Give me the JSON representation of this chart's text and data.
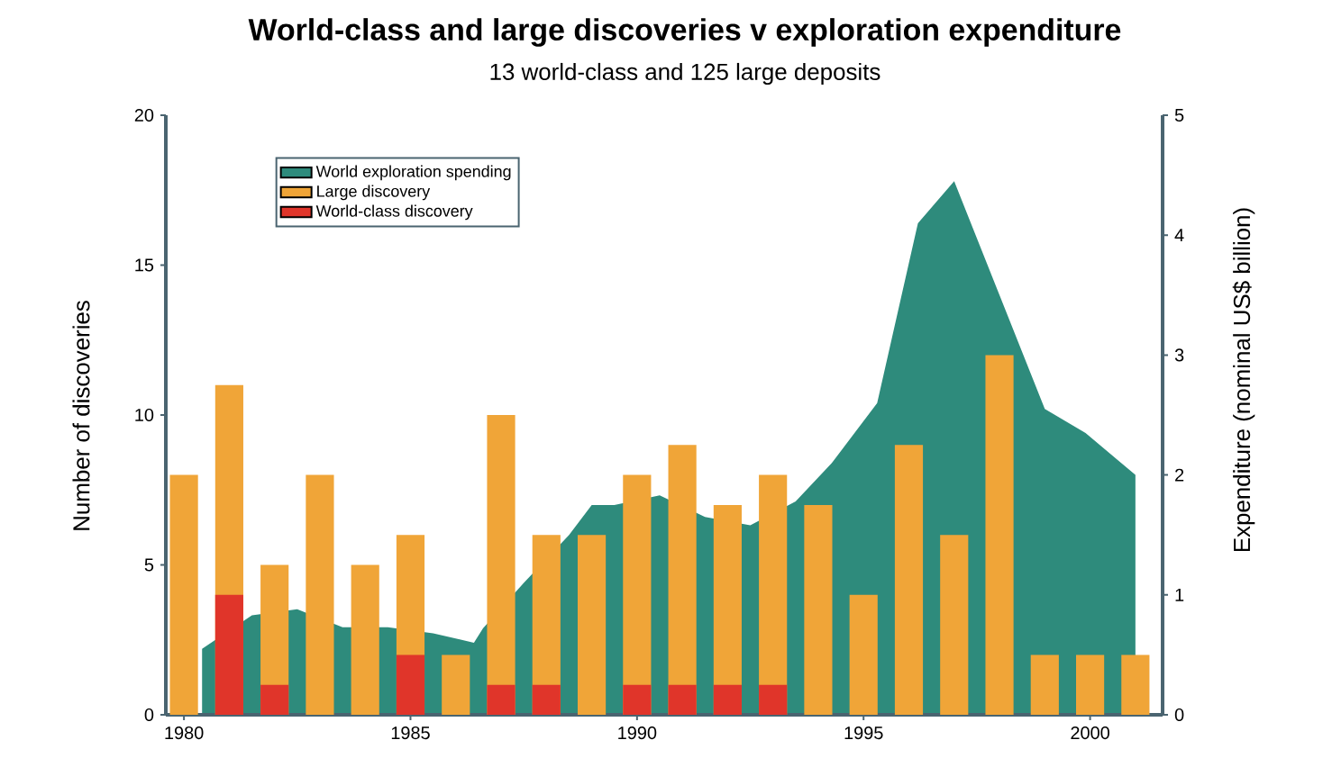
{
  "chart_data": {
    "type": "bar",
    "title": "World-class and large discoveries v exploration expenditure",
    "subtitle": "13 world-class and 125 large deposits",
    "ylabel": "Number of discoveries",
    "y2label": "Expenditure (nominal US$ billion)",
    "x": [
      1980,
      1981,
      1982,
      1983,
      1984,
      1985,
      1986,
      1987,
      1988,
      1989,
      1990,
      1991,
      1992,
      1993,
      1994,
      1995,
      1996,
      1997,
      1998,
      1999,
      2000,
      2001
    ],
    "series": [
      {
        "name": "World exploration spending",
        "type": "area",
        "axis": "y2",
        "color": "#2e8b7c",
        "x": [
          1980.4,
          1981.5,
          1982.5,
          1983.5,
          1984.5,
          1985.5,
          1986.4,
          1986.6,
          1987.5,
          1988.5,
          1989,
          1989.5,
          1990.5,
          1991.5,
          1992.5,
          1993.5,
          1994.3,
          1995.3,
          1996.2,
          1997,
          1998,
          1999,
          1999.9,
          2001
        ],
        "values": [
          0.55,
          0.83,
          0.88,
          0.73,
          0.73,
          0.68,
          0.6,
          0.72,
          1.1,
          1.5,
          1.75,
          1.75,
          1.83,
          1.65,
          1.58,
          1.78,
          2.1,
          2.6,
          4.1,
          4.45,
          3.5,
          2.55,
          2.35,
          2.0
        ]
      },
      {
        "name": "Large discovery",
        "color": "#f0a538",
        "values": [
          8,
          11,
          5,
          8,
          5,
          6,
          2,
          10,
          6,
          6,
          8,
          9,
          7,
          8,
          7,
          4,
          9,
          6,
          12,
          2,
          2,
          2
        ]
      },
      {
        "name": "World-class discovery",
        "color": "#e0352a",
        "values": [
          null,
          4,
          1,
          null,
          null,
          2,
          null,
          1,
          1,
          null,
          1,
          1,
          1,
          1,
          null,
          null,
          null,
          null,
          null,
          null,
          null,
          null
        ]
      }
    ],
    "xlim": [
      1979.6,
      2001.6
    ],
    "xticks": [
      1980,
      1985,
      1990,
      1995,
      2000
    ],
    "ylim": [
      0,
      20
    ],
    "yticks": [
      0,
      5,
      10,
      15,
      20
    ],
    "y2lim": [
      0,
      5
    ],
    "y2ticks": [
      0,
      1,
      2,
      3,
      4,
      5
    ],
    "legend": "top left",
    "grid": false
  }
}
